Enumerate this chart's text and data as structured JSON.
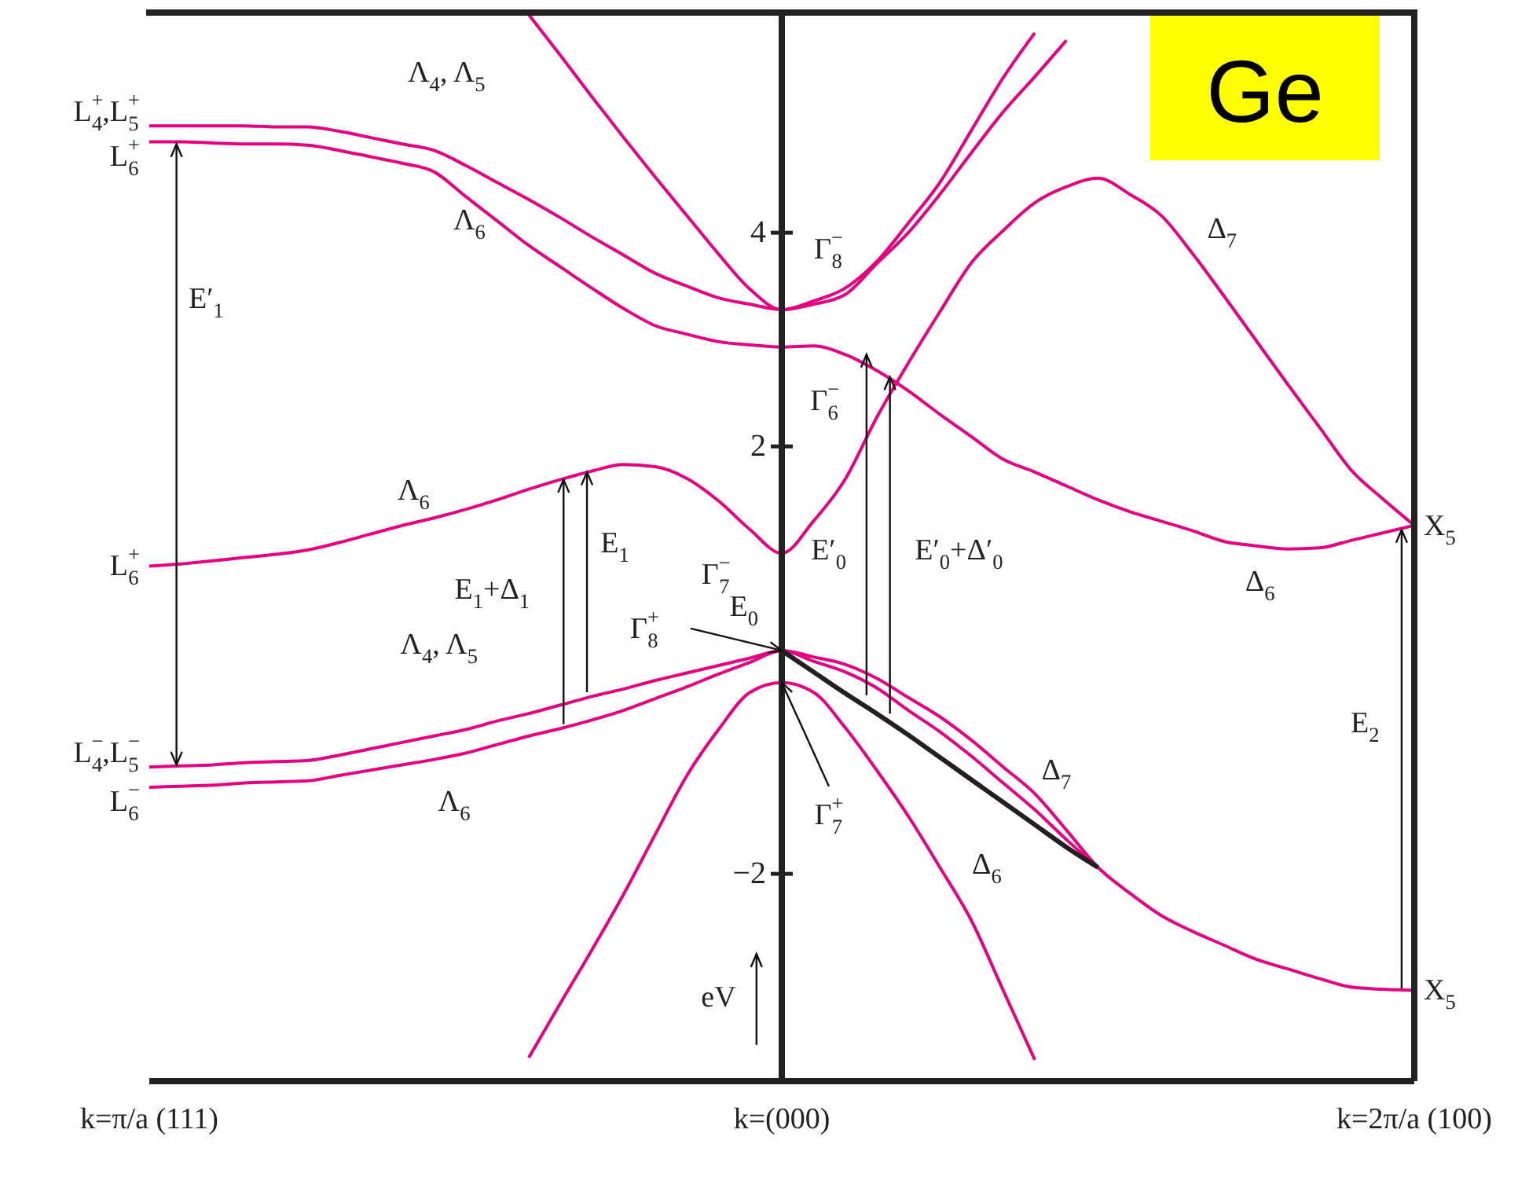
{
  "chart_data": {
    "type": "line",
    "title": "Ge",
    "ylabel": "eV",
    "ylim": [
      -3.94,
      6.06
    ],
    "yticks": [
      -2,
      2,
      4
    ],
    "grid": false,
    "marker": "none",
    "line_style": "solid",
    "categories": [
      "k=π/a (111)",
      null,
      null,
      null,
      null,
      null,
      null,
      null,
      null,
      null,
      null,
      null,
      null,
      null,
      null,
      null,
      null,
      null,
      null,
      null,
      "k=(000)",
      null,
      null,
      null,
      null,
      null,
      null,
      null,
      null,
      null,
      null,
      null,
      null,
      null,
      null,
      null,
      null,
      null,
      null,
      null,
      "k=2π/a (100)"
    ],
    "series": [
      {
        "color": "#e4007f",
        "values": [
          5.0,
          5.0,
          5.0,
          5.0,
          4.99,
          4.99,
          4.95,
          4.89,
          4.83,
          4.77,
          4.63,
          4.47,
          4.31,
          4.14,
          3.96,
          3.79,
          3.62,
          3.5,
          3.39,
          3.33,
          3.28,
          3.33,
          3.42,
          3.71,
          4.0,
          4.36,
          4.75,
          5.13,
          5.46,
          5.8,
          null,
          null,
          null,
          null,
          null,
          null,
          null,
          null,
          null,
          null,
          null
        ]
      },
      {
        "color": "#e4007f",
        "values": [
          4.85,
          4.85,
          4.84,
          4.83,
          4.83,
          4.82,
          4.77,
          4.71,
          4.65,
          4.57,
          4.34,
          4.11,
          3.88,
          3.68,
          3.48,
          3.29,
          3.13,
          3.05,
          2.98,
          2.95,
          2.93,
          2.94,
          2.86,
          2.71,
          2.52,
          2.3,
          2.09,
          1.88,
          1.76,
          1.63,
          1.5,
          1.39,
          1.3,
          1.21,
          1.11,
          1.07,
          1.04,
          1.05,
          1.12,
          1.19,
          1.26
        ]
      },
      {
        "color": "#e4007f",
        "values": [
          null,
          null,
          null,
          null,
          null,
          null,
          null,
          null,
          null,
          null,
          null,
          null,
          6.04,
          5.66,
          5.27,
          4.89,
          4.52,
          4.16,
          3.8,
          3.47,
          3.28,
          3.36,
          3.48,
          3.73,
          4.09,
          4.47,
          4.96,
          5.45,
          5.87,
          null,
          null,
          null,
          null,
          null,
          null,
          null,
          null,
          null,
          null,
          null,
          null
        ]
      },
      {
        "color": "#e4007f",
        "values": [
          0.88,
          0.9,
          0.93,
          0.96,
          0.99,
          1.03,
          1.1,
          1.18,
          1.26,
          1.33,
          1.41,
          1.5,
          1.6,
          1.69,
          1.77,
          1.83,
          1.81,
          1.7,
          1.49,
          1.22,
          1.0,
          1.3,
          1.69,
          2.27,
          2.78,
          3.26,
          3.72,
          4.02,
          4.28,
          4.43,
          4.51,
          4.36,
          4.16,
          3.8,
          3.4,
          2.99,
          2.58,
          2.18,
          1.78,
          1.51,
          1.26
        ]
      },
      {
        "color": "#e4007f",
        "values": [
          -1.0,
          -0.99,
          -0.98,
          -0.96,
          -0.95,
          -0.94,
          -0.89,
          -0.83,
          -0.77,
          -0.71,
          -0.65,
          -0.57,
          -0.5,
          -0.42,
          -0.34,
          -0.27,
          -0.19,
          -0.12,
          -0.05,
          0.02,
          0.09,
          0.03,
          -0.04,
          -0.17,
          -0.35,
          -0.53,
          -0.75,
          -1.0,
          -1.25,
          -1.59,
          -1.94,
          -2.18,
          -2.39,
          -2.54,
          -2.67,
          -2.8,
          -2.89,
          -2.98,
          -3.06,
          -3.08,
          -3.09
        ]
      },
      {
        "color": "#e4007f",
        "values": [
          -1.19,
          -1.18,
          -1.17,
          -1.15,
          -1.14,
          -1.13,
          -1.08,
          -1.03,
          -0.98,
          -0.93,
          -0.87,
          -0.79,
          -0.71,
          -0.64,
          -0.56,
          -0.47,
          -0.36,
          -0.25,
          -0.13,
          -0.02,
          0.09,
          -0.01,
          -0.11,
          -0.26,
          -0.47,
          -0.67,
          -0.9,
          -1.15,
          -1.4,
          -1.68,
          -1.94,
          null,
          null,
          null,
          null,
          null,
          null,
          null,
          null,
          null,
          null
        ]
      },
      {
        "color": "#231f20",
        "values": [
          null,
          null,
          null,
          null,
          null,
          null,
          null,
          null,
          null,
          null,
          null,
          null,
          null,
          null,
          null,
          null,
          null,
          null,
          null,
          null,
          0.09,
          -0.11,
          -0.31,
          -0.5,
          -0.7,
          -0.91,
          -1.12,
          -1.33,
          -1.54,
          -1.75,
          -1.94,
          null,
          null,
          null,
          null,
          null,
          null,
          null,
          null,
          null,
          null
        ]
      },
      {
        "color": "#e4007f",
        "values": [
          null,
          null,
          null,
          null,
          null,
          null,
          null,
          null,
          null,
          null,
          null,
          null,
          -3.72,
          -3.21,
          -2.71,
          -2.19,
          -1.63,
          -1.08,
          -0.65,
          -0.3,
          -0.21,
          -0.3,
          -0.63,
          -1.03,
          -1.46,
          -1.94,
          -2.44,
          -3.09,
          -3.74,
          null,
          null,
          null,
          null,
          null,
          null,
          null,
          null,
          null,
          null,
          null,
          null
        ]
      }
    ],
    "annotations": [
      {
        "text": "L$^{+}$$_{4}$,L$^{+}$$_{5}$",
        "x": "k=π/a (111)",
        "y": 5.0
      },
      {
        "text": "L$^{+}$$_{6}$",
        "x": "k=π/a (111)",
        "y": 4.85
      },
      {
        "text": "L$^{+}$$_{6}$",
        "x": "k=π/a (111)",
        "y": 0.88
      },
      {
        "text": "L$^{−}$$_{4}$,L$^{−}$$_{5}$",
        "x": "k=π/a (111)",
        "y": -1.0
      },
      {
        "text": "L$^{−}$$_{6}$",
        "x": "k=π/a (111)",
        "y": -1.19
      },
      {
        "text": "X$_{5}$",
        "x": "k=2π/a (100)",
        "y": 1.26
      },
      {
        "text": "X$_{5}$",
        "x": "k=2π/a (100)",
        "y": -3.09
      },
      "Λ$_{4}$, Λ$_{5}$",
      "Λ$_{6}$",
      "Λ$_{6}$",
      "Λ$_{4}$, Λ$_{5}$",
      "Λ$_{6}$",
      "E′$_{1}$",
      "E$_{1}$+Δ$_{1}$",
      "E$_{1}$",
      "Γ$^{−}$$_{8}$",
      "Γ$^{−}$$_{6}$",
      "Γ$^{−}$$_{7}$",
      "E$_{0}$",
      {
        "text": "Γ$^{+}$$_{8}$",
        "x": "k=(000)",
        "y": 0.09
      },
      {
        "text": "Γ$^{+}$$_{7}$",
        "x": "k=(000)",
        "y": -0.21
      },
      "E′$_{0}$",
      "E′$_{0}$+Δ′$_{0}$",
      "Δ$_{7}$",
      "Δ$_{6}$",
      "E$_{2}$",
      "Δ$_{7}$",
      "Δ$_{6}$"
    ]
  }
}
